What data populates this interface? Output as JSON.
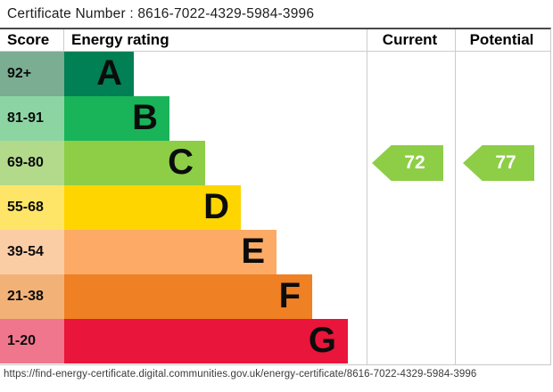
{
  "certificate_line": "Certificate Number : 8616-7022-4329-5984-3996",
  "footer_url": "https://find-energy-certificate.digital.communities.gov.uk/energy-certificate/8616-7022-4329-5984-3996",
  "table": {
    "headers": {
      "score": "Score",
      "energy_rating": "Energy rating",
      "current": "Current",
      "potential": "Potential"
    }
  },
  "chart_data": {
    "type": "bar",
    "title": "Energy rating",
    "bands": [
      {
        "letter": "A",
        "range": "92+",
        "color": "#008054",
        "tint": "#7bad93"
      },
      {
        "letter": "B",
        "range": "81-91",
        "color": "#19b459",
        "tint": "#8cd5a3"
      },
      {
        "letter": "C",
        "range": "69-80",
        "color": "#8dce46",
        "tint": "#b3da8b"
      },
      {
        "letter": "D",
        "range": "55-68",
        "color": "#ffd500",
        "tint": "#ffe567"
      },
      {
        "letter": "E",
        "range": "39-54",
        "color": "#fcaa65",
        "tint": "#fbcda5"
      },
      {
        "letter": "F",
        "range": "21-38",
        "color": "#ef8023",
        "tint": "#f2b277"
      },
      {
        "letter": "G",
        "range": "1-20",
        "color": "#e9153b",
        "tint": "#f0768d"
      }
    ],
    "current": {
      "value": "72",
      "band": "C",
      "arrow_color": "#8dce46"
    },
    "potential": {
      "value": "77",
      "band": "C",
      "arrow_color": "#8dce46"
    }
  }
}
